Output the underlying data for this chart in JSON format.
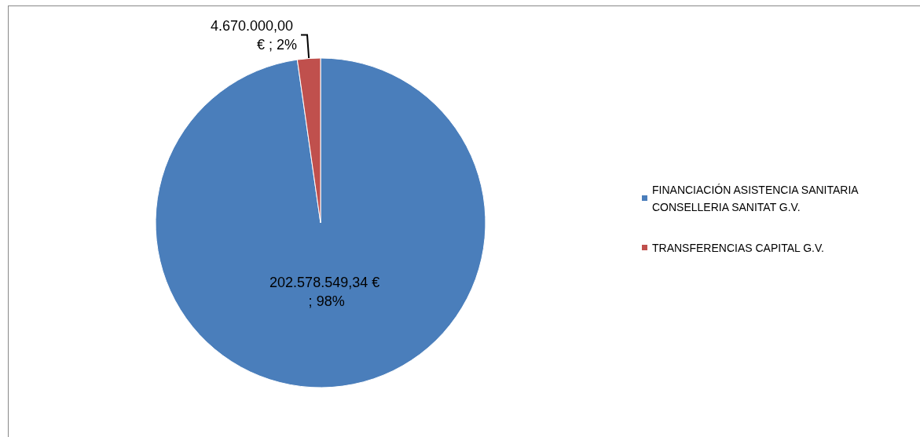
{
  "chart_data": {
    "type": "pie",
    "categories": [
      "FINANCIACIÓN ASISTENCIA SANITARIA CONSELLERIA SANITAT G.V.",
      "TRANSFERENCIAS CAPITAL G.V."
    ],
    "values": [
      202578549.34,
      4670000
    ],
    "colors": [
      "#4a7ebb",
      "#c0504d"
    ],
    "value_labels": [
      "202.578.549,34 € ; 98%",
      "4.670.000,00 € ; 2%"
    ],
    "legend": "right"
  }
}
